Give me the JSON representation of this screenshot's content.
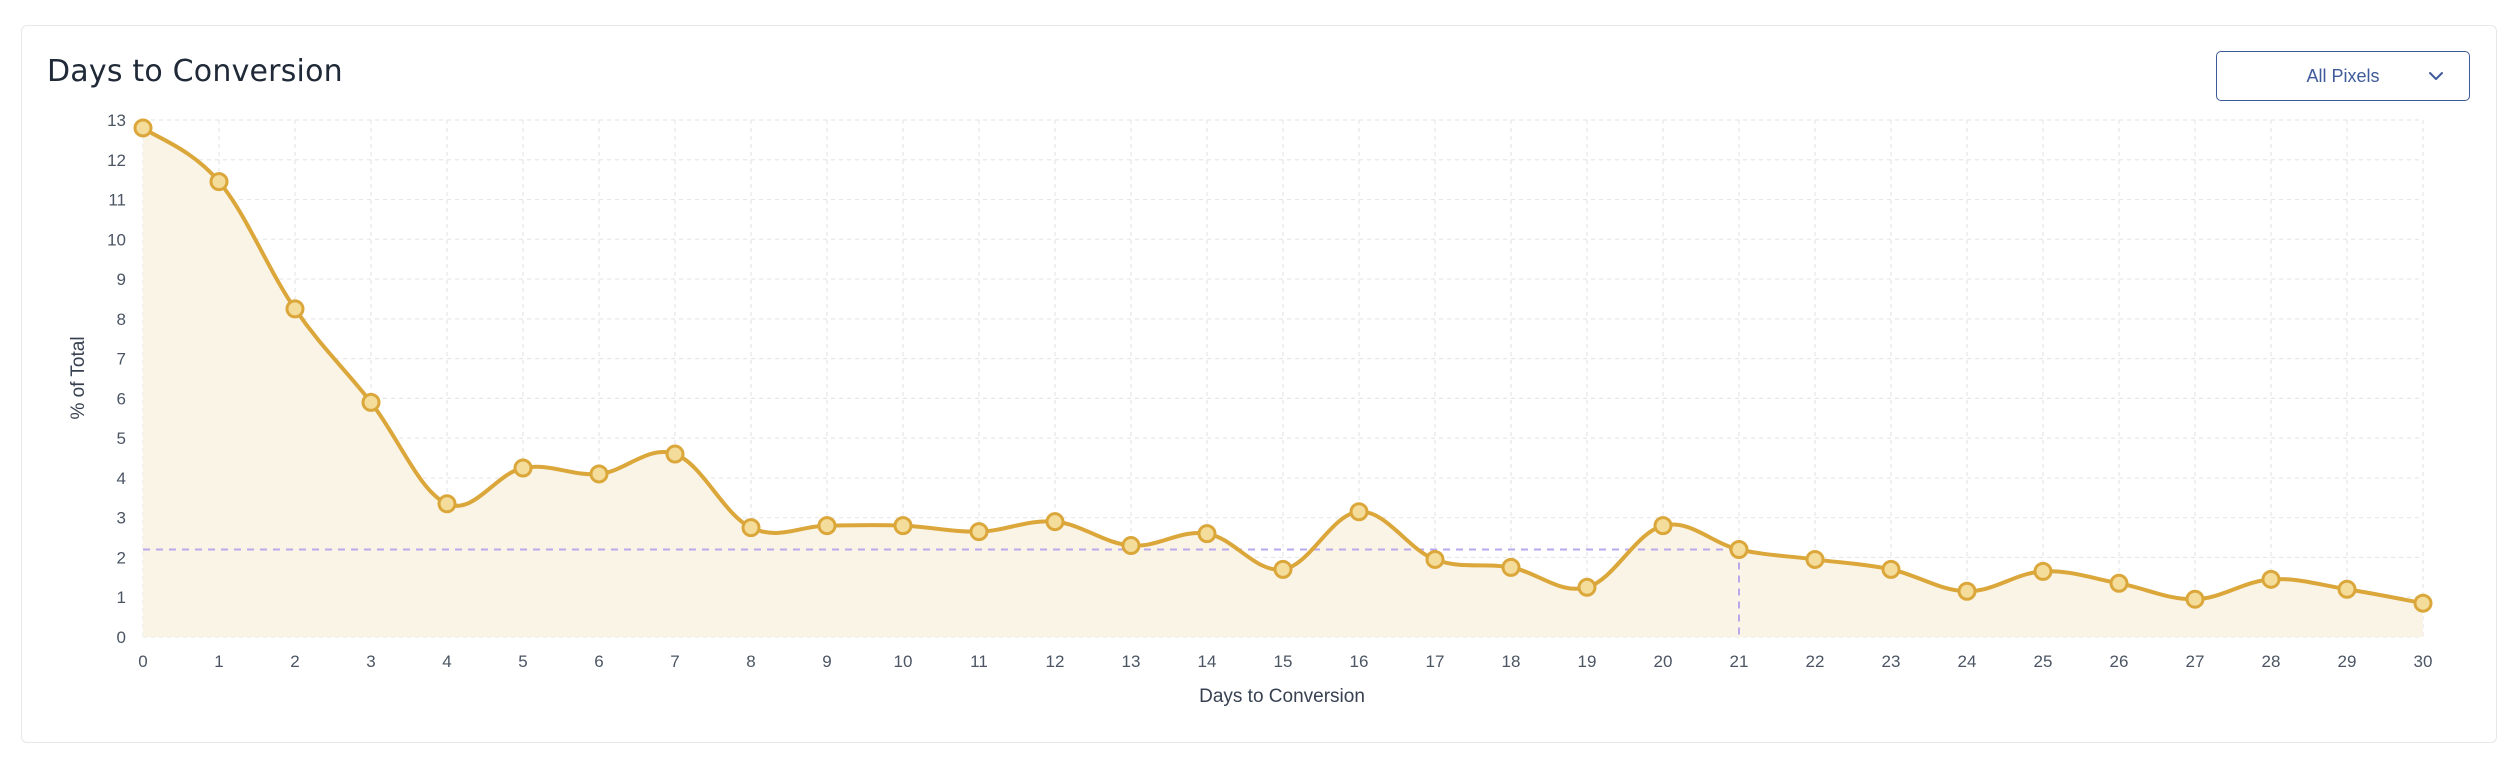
{
  "header": {
    "title": "Days to Conversion",
    "dropdown_label": "All Pixels"
  },
  "colors": {
    "line": "#dba73a",
    "fill": "#faf4e6",
    "point_fill": "#f4dc9b",
    "ref_line": "#b9a8ec",
    "grid": "#e5e7eb"
  },
  "chart_data": {
    "type": "area",
    "title": "Days to Conversion",
    "xlabel": "Days to Conversion",
    "ylabel": "% of Total",
    "x": [
      0,
      1,
      2,
      3,
      4,
      5,
      6,
      7,
      8,
      9,
      10,
      11,
      12,
      13,
      14,
      15,
      16,
      17,
      18,
      19,
      20,
      21,
      22,
      23,
      24,
      25,
      26,
      27,
      28,
      29,
      30
    ],
    "values": [
      12.8,
      11.45,
      8.25,
      5.9,
      3.35,
      4.25,
      4.1,
      4.6,
      2.75,
      2.8,
      2.8,
      2.65,
      2.9,
      2.3,
      2.6,
      1.7,
      3.15,
      1.95,
      1.75,
      1.25,
      2.8,
      2.2,
      1.95,
      1.7,
      1.15,
      1.65,
      1.35,
      0.95,
      1.45,
      1.2,
      0.85
    ],
    "xlim": [
      0,
      30
    ],
    "ylim": [
      0,
      13
    ],
    "yticks": [
      0,
      1,
      2,
      3,
      4,
      5,
      6,
      7,
      8,
      9,
      10,
      11,
      12,
      13
    ],
    "xticks": [
      0,
      1,
      2,
      3,
      4,
      5,
      6,
      7,
      8,
      9,
      10,
      11,
      12,
      13,
      14,
      15,
      16,
      17,
      18,
      19,
      20,
      21,
      22,
      23,
      24,
      25,
      26,
      27,
      28,
      29,
      30
    ],
    "grid": true,
    "reference": {
      "x": 21,
      "y": 2.2
    }
  }
}
